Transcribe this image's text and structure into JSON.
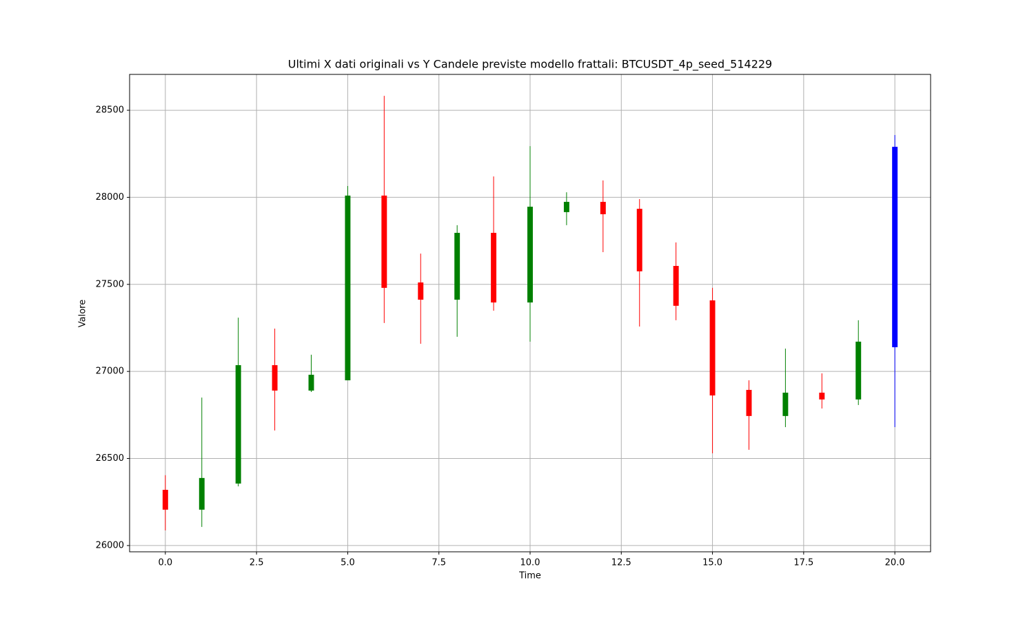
{
  "chart_data": {
    "type": "candlestick",
    "title": "Ultimi X dati originali vs Y Candele previste modello frattali: BTCUSDT_4p_seed_514229",
    "x_label": "Time",
    "y_label": "Valore",
    "x": [
      0,
      1,
      2,
      3,
      4,
      5,
      6,
      7,
      8,
      9,
      10,
      11,
      12,
      13,
      14,
      15,
      16,
      17,
      18,
      19,
      20
    ],
    "open": [
      26320,
      26206,
      26356,
      27036,
      26890,
      26949,
      28010,
      27511,
      27412,
      27796,
      27396,
      27915,
      27974,
      27934,
      27606,
      27408,
      26894,
      26744,
      26878,
      26839,
      27139
    ],
    "high": [
      26404,
      26850,
      27309,
      27246,
      27096,
      28065,
      28583,
      27677,
      27840,
      28120,
      28294,
      28029,
      28097,
      27990,
      27741,
      27480,
      26949,
      27131,
      26989,
      27294,
      28358
    ],
    "low": [
      26087,
      26107,
      26340,
      26661,
      26882,
      26949,
      27278,
      27159,
      27199,
      27349,
      27171,
      27840,
      27685,
      27258,
      27294,
      26530,
      26550,
      26680,
      26787,
      26807,
      26680
    ],
    "close": [
      26206,
      26388,
      27036,
      26890,
      26981,
      28010,
      27480,
      27412,
      27796,
      27396,
      27946,
      27974,
      27903,
      27575,
      27377,
      26862,
      26744,
      26878,
      26839,
      27171,
      28290
    ],
    "colors": [
      "red",
      "green",
      "green",
      "red",
      "green",
      "green",
      "red",
      "red",
      "green",
      "red",
      "green",
      "green",
      "red",
      "red",
      "red",
      "red",
      "red",
      "green",
      "red",
      "green",
      "blue"
    ],
    "xlim": [
      -0.98,
      20.98
    ],
    "ylim": [
      25964,
      28706
    ],
    "xticks": [
      {
        "value": 0,
        "label": "0.0"
      },
      {
        "value": 2.5,
        "label": "2.5"
      },
      {
        "value": 5,
        "label": "5.0"
      },
      {
        "value": 7.5,
        "label": "7.5"
      },
      {
        "value": 10,
        "label": "10.0"
      },
      {
        "value": 12.5,
        "label": "12.5"
      },
      {
        "value": 15,
        "label": "15.0"
      },
      {
        "value": 17.5,
        "label": "17.5"
      },
      {
        "value": 20,
        "label": "20.0"
      }
    ],
    "yticks": [
      26000,
      26500,
      27000,
      27500,
      28000,
      28500
    ],
    "grid": true
  }
}
